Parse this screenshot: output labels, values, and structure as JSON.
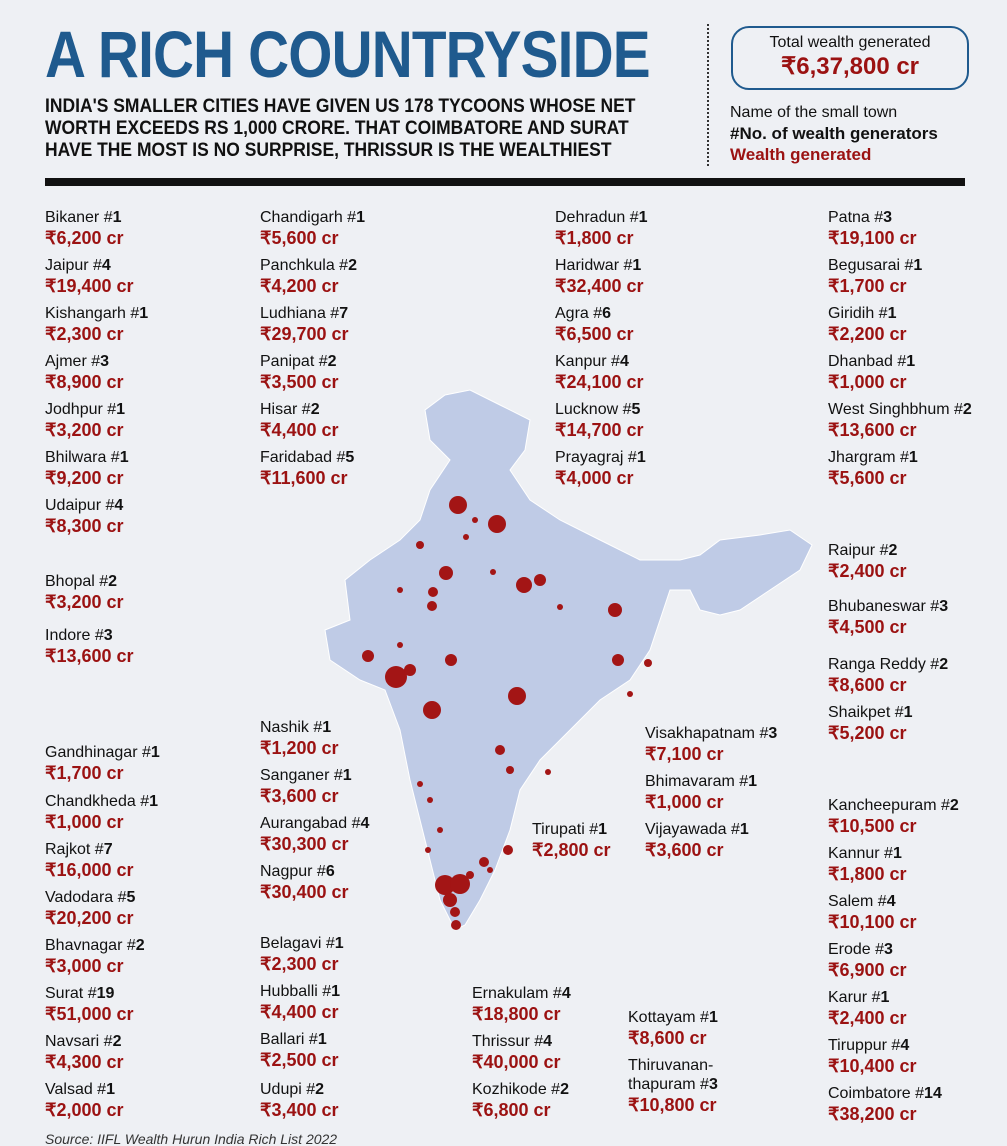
{
  "title": "A RICH COUNTRYSIDE",
  "subtitle": "India's smaller cities have given us 178 tycoons whose net worth exceeds Rs 1,000 crore. That Coimbatore and Surat have the most is no surprise, Thrissur is the wealthiest",
  "total": {
    "label": "Total wealth generated",
    "value": "₹6,37,800 cr"
  },
  "legend": {
    "name": "Name of the small town",
    "count": "#No. of wealth generators",
    "wealth": "Wealth generated"
  },
  "source": "Source: IIFL Wealth Hurun India Rich List 2022",
  "colors": {
    "title": "#1f5a8e",
    "wealth": "#9b1212",
    "map": "#bfcbe6",
    "dot": "#a31515"
  },
  "towns": [
    {
      "name": "Bikaner",
      "count": "1",
      "wealth": "₹6,200 cr"
    },
    {
      "name": "Jaipur",
      "count": "4",
      "wealth": "₹19,400 cr"
    },
    {
      "name": "Kishangarh",
      "count": "1",
      "wealth": "₹2,300 cr"
    },
    {
      "name": "Ajmer",
      "count": "3",
      "wealth": "₹8,900 cr"
    },
    {
      "name": "Jodhpur",
      "count": "1",
      "wealth": "₹3,200 cr"
    },
    {
      "name": "Bhilwara",
      "count": "1",
      "wealth": "₹9,200 cr"
    },
    {
      "name": "Udaipur",
      "count": "4",
      "wealth": "₹8,300 cr"
    },
    {
      "name": "Bhopal",
      "count": "2",
      "wealth": "₹3,200 cr"
    },
    {
      "name": "Indore",
      "count": "3",
      "wealth": "₹13,600 cr"
    },
    {
      "name": "Gandhinagar",
      "count": "1",
      "wealth": "₹1,700 cr"
    },
    {
      "name": "Chandkheda",
      "count": "1",
      "wealth": "₹1,000 cr"
    },
    {
      "name": "Rajkot",
      "count": "7",
      "wealth": "₹16,000 cr"
    },
    {
      "name": "Vadodara",
      "count": "5",
      "wealth": "₹20,200 cr"
    },
    {
      "name": "Bhavnagar",
      "count": "2",
      "wealth": "₹3,000 cr"
    },
    {
      "name": "Surat",
      "count": "19",
      "wealth": "₹51,000 cr"
    },
    {
      "name": "Navsari",
      "count": "2",
      "wealth": "₹4,300 cr"
    },
    {
      "name": "Valsad",
      "count": "1",
      "wealth": "₹2,000 cr"
    },
    {
      "name": "Chandigarh",
      "count": "1",
      "wealth": "₹5,600 cr"
    },
    {
      "name": "Panchkula",
      "count": "2",
      "wealth": "₹4,200 cr"
    },
    {
      "name": "Ludhiana",
      "count": "7",
      "wealth": "₹29,700 cr"
    },
    {
      "name": "Panipat",
      "count": "2",
      "wealth": "₹3,500 cr"
    },
    {
      "name": "Hisar",
      "count": "2",
      "wealth": "₹4,400 cr"
    },
    {
      "name": "Faridabad",
      "count": "5",
      "wealth": "₹11,600 cr"
    },
    {
      "name": "Nashik",
      "count": "1",
      "wealth": "₹1,200 cr"
    },
    {
      "name": "Sanganer",
      "count": "1",
      "wealth": "₹3,600 cr"
    },
    {
      "name": "Aurangabad",
      "count": "4",
      "wealth": "₹30,300 cr"
    },
    {
      "name": "Nagpur",
      "count": "6",
      "wealth": "₹30,400 cr"
    },
    {
      "name": "Belagavi",
      "count": "1",
      "wealth": "₹2,300 cr"
    },
    {
      "name": "Hubballi",
      "count": "1",
      "wealth": "₹4,400 cr"
    },
    {
      "name": "Ballari",
      "count": "1",
      "wealth": "₹2,500 cr"
    },
    {
      "name": "Udupi",
      "count": "2",
      "wealth": "₹3,400 cr"
    },
    {
      "name": "Dehradun",
      "count": "1",
      "wealth": "₹1,800 cr"
    },
    {
      "name": "Haridwar",
      "count": "1",
      "wealth": "₹32,400 cr"
    },
    {
      "name": "Agra",
      "count": "6",
      "wealth": "₹6,500 cr"
    },
    {
      "name": "Kanpur",
      "count": "4",
      "wealth": "₹24,100 cr"
    },
    {
      "name": "Lucknow",
      "count": "5",
      "wealth": "₹14,700 cr"
    },
    {
      "name": "Prayagraj",
      "count": "1",
      "wealth": "₹4,000 cr"
    },
    {
      "name": "Visakhapatnam",
      "count": "3",
      "wealth": "₹7,100 cr"
    },
    {
      "name": "Bhimavaram",
      "count": "1",
      "wealth": "₹1,000 cr"
    },
    {
      "name": "Vijayawada",
      "count": "1",
      "wealth": "₹3,600 cr"
    },
    {
      "name": "Tirupati",
      "count": "1",
      "wealth": "₹2,800 cr"
    },
    {
      "name": "Ernakulam",
      "count": "4",
      "wealth": "₹18,800 cr"
    },
    {
      "name": "Thrissur",
      "count": "4",
      "wealth": "₹40,000 cr"
    },
    {
      "name": "Kozhikode",
      "count": "2",
      "wealth": "₹6,800 cr"
    },
    {
      "name": "Kottayam",
      "count": "1",
      "wealth": "₹8,600 cr"
    },
    {
      "name": "Thiruvanan-\nthapuram",
      "count": "3",
      "wealth": "₹10,800 cr"
    },
    {
      "name": "Patna",
      "count": "3",
      "wealth": "₹19,100 cr"
    },
    {
      "name": "Begusarai",
      "count": "1",
      "wealth": "₹1,700 cr"
    },
    {
      "name": "Giridih",
      "count": "1",
      "wealth": "₹2,200 cr"
    },
    {
      "name": "Dhanbad",
      "count": "1",
      "wealth": "₹1,000 cr"
    },
    {
      "name": "West Singhbhum",
      "count": "2",
      "wealth": "₹13,600 cr"
    },
    {
      "name": "Jhargram",
      "count": "1",
      "wealth": "₹5,600 cr"
    },
    {
      "name": "Raipur",
      "count": "2",
      "wealth": "₹2,400 cr"
    },
    {
      "name": "Bhubaneswar",
      "count": "3",
      "wealth": "₹4,500 cr"
    },
    {
      "name": "Ranga Reddy",
      "count": "2",
      "wealth": "₹8,600 cr"
    },
    {
      "name": "Shaikpet",
      "count": "1",
      "wealth": "₹5,200 cr"
    },
    {
      "name": "Kancheepuram",
      "count": "2",
      "wealth": "₹10,500 cr"
    },
    {
      "name": "Kannur",
      "count": "1",
      "wealth": "₹1,800 cr"
    },
    {
      "name": "Salem",
      "count": "4",
      "wealth": "₹10,100 cr"
    },
    {
      "name": "Erode",
      "count": "3",
      "wealth": "₹6,900 cr"
    },
    {
      "name": "Karur",
      "count": "1",
      "wealth": "₹2,400 cr"
    },
    {
      "name": "Tiruppur",
      "count": "4",
      "wealth": "₹10,400 cr"
    },
    {
      "name": "Coimbatore",
      "count": "14",
      "wealth": "₹38,200 cr"
    }
  ]
}
